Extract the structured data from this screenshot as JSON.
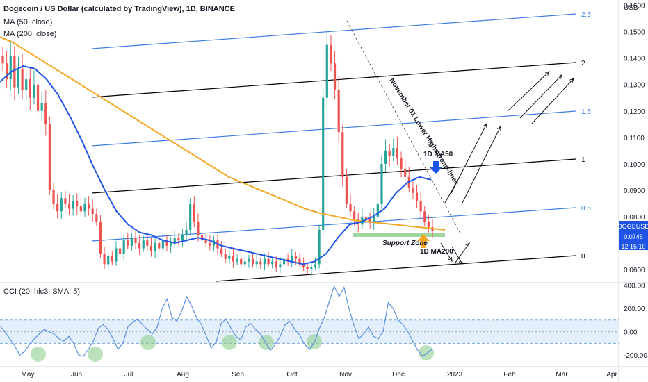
{
  "header": {
    "title": "Dogecoin / US Dollar (calculated by TradingView), 1D, BINANCE",
    "ma50": "MA (50, close)",
    "ma200": "MA (200, close)"
  },
  "cci_header": "CCI (20, hlc3, SMA, 5)",
  "colors": {
    "up": "#26a69a",
    "down": "#ef5350",
    "ma50": "#1e53e5",
    "ma200": "#f5a623",
    "fib_black": "#000000",
    "fib_blue": "#3d7ee3",
    "support": "#8fce8f",
    "cci_line": "#5b8fe3",
    "cci_band": "#e3f0fb",
    "price_badge": "#1e53e5",
    "highlight": "#8fce8f"
  },
  "chart_data": [
    {
      "type": "candlestick",
      "symbol": "DOGEUSD",
      "yunit": "USD",
      "ylim": [
        0.055,
        0.162
      ],
      "x_ticks": [
        "May",
        "Jun",
        "Jul",
        "Aug",
        "Sep",
        "Oct",
        "Nov",
        "Dec",
        "2023",
        "Feb",
        "Mar",
        "Apr"
      ],
      "y_ticks": [
        0.06,
        0.07,
        0.08,
        0.09,
        0.1,
        0.11,
        0.12,
        0.13,
        0.14,
        0.15,
        0.16
      ],
      "y_tick_labels": [
        "0.0600",
        "0.0700",
        "0.0800",
        "0.0900",
        "0.1000",
        "0.1100",
        "0.1200",
        "0.1300",
        "0.1400",
        "0.1500",
        "0.1600"
      ],
      "last_price": "0.0745",
      "countdown": "12:15:10",
      "symbol_label": "DOGEUSD",
      "candles_close": [
        0.138,
        0.132,
        0.141,
        0.129,
        0.136,
        0.128,
        0.132,
        0.125,
        0.13,
        0.12,
        0.123,
        0.115,
        0.09,
        0.085,
        0.082,
        0.087,
        0.085,
        0.083,
        0.086,
        0.084,
        0.082,
        0.085,
        0.083,
        0.081,
        0.078,
        0.066,
        0.062,
        0.065,
        0.063,
        0.068,
        0.066,
        0.071,
        0.069,
        0.072,
        0.07,
        0.068,
        0.071,
        0.069,
        0.067,
        0.07,
        0.068,
        0.071,
        0.069,
        0.07,
        0.072,
        0.071,
        0.073,
        0.075,
        0.085,
        0.078,
        0.073,
        0.071,
        0.07,
        0.069,
        0.071,
        0.068,
        0.066,
        0.064,
        0.065,
        0.063,
        0.064,
        0.062,
        0.063,
        0.064,
        0.062,
        0.063,
        0.062,
        0.064,
        0.062,
        0.063,
        0.061,
        0.062,
        0.064,
        0.063,
        0.065,
        0.064,
        0.062,
        0.061,
        0.06,
        0.061,
        0.062,
        0.075,
        0.125,
        0.145,
        0.138,
        0.128,
        0.112,
        0.095,
        0.085,
        0.082,
        0.079,
        0.077,
        0.08,
        0.079,
        0.078,
        0.08,
        0.085,
        0.1,
        0.105,
        0.103,
        0.106,
        0.102,
        0.098,
        0.095,
        0.091,
        0.089,
        0.086,
        0.082,
        0.078,
        0.076,
        0.0745
      ],
      "annotations": [
        "November 01 Lower Highs trend-line",
        "1D MA50",
        "1D MA200",
        "Support Zone"
      ],
      "fib_levels": [
        "0",
        "0.5",
        "1",
        "1.5",
        "2",
        "2.5"
      ]
    },
    {
      "type": "line",
      "name": "CCI (20, hlc3, SMA, 5)",
      "ylim": [
        -300,
        420
      ],
      "y_ticks": [
        400,
        200,
        0,
        -200
      ],
      "y_tick_labels": [
        "400.00",
        "200.00",
        "0.00",
        "-200.00"
      ],
      "band": [
        -100,
        100
      ],
      "values": [
        50,
        0,
        -60,
        -120,
        -200,
        -170,
        -110,
        -60,
        -20,
        20,
        0,
        -20,
        -60,
        -80,
        -40,
        -100,
        -200,
        -210,
        -150,
        -80,
        30,
        60,
        20,
        -60,
        -150,
        -100,
        40,
        80,
        110,
        60,
        20,
        -20,
        40,
        200,
        280,
        120,
        90,
        180,
        300,
        220,
        120,
        60,
        -40,
        -140,
        -90,
        70,
        110,
        30,
        -40,
        -70,
        40,
        70,
        20,
        -20,
        -90,
        -160,
        -110,
        -40,
        60,
        90,
        20,
        -30,
        -110,
        -150,
        -90,
        30,
        120,
        260,
        390,
        300,
        380,
        200,
        60,
        -60,
        -20,
        40,
        -40,
        -60,
        10,
        250,
        200,
        100,
        60,
        0,
        -80,
        -160,
        -210,
        -180,
        -150
      ]
    }
  ]
}
